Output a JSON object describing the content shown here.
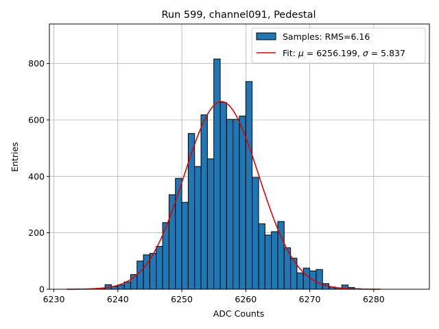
{
  "chart_data": {
    "type": "bar",
    "title": "Run 599, channel091, Pedestal",
    "xlabel": "ADC Counts",
    "ylabel": "Entries",
    "xlim": [
      6229.3,
      6288.7
    ],
    "ylim": [
      0,
      940
    ],
    "xticks": [
      6230,
      6240,
      6250,
      6260,
      6270,
      6280
    ],
    "yticks": [
      0,
      200,
      400,
      600,
      800
    ],
    "grid": true,
    "legend_position": "top-right",
    "histogram": {
      "name": "Samples: RMS=6.16",
      "bin_width": 1,
      "bin_left_edges": [
        6237,
        6238,
        6239,
        6240,
        6241,
        6242,
        6243,
        6244,
        6245,
        6246,
        6247,
        6248,
        6249,
        6250,
        6251,
        6252,
        6253,
        6254,
        6255,
        6256,
        6257,
        6258,
        6259,
        6260,
        6261,
        6262,
        6263,
        6264,
        6265,
        6266,
        6267,
        6268,
        6269,
        6270,
        6271,
        6272,
        6273,
        6274,
        6275,
        6276,
        6277
      ],
      "values": [
        3,
        16,
        10,
        15,
        26,
        52,
        100,
        122,
        127,
        152,
        236,
        335,
        393,
        308,
        552,
        435,
        618,
        462,
        816,
        662,
        602,
        602,
        614,
        736,
        396,
        232,
        192,
        204,
        240,
        147,
        110,
        58,
        75,
        65,
        70,
        20,
        8,
        5,
        15,
        6,
        2
      ],
      "fill_color": "#1f77b4",
      "edge_color": "#000000"
    },
    "fit": {
      "name": "Fit: μ = 6256.199, σ = 5.837",
      "label_prefix": "Fit: ",
      "mu_symbol": "μ",
      "mu_value": " = 6256.199, ",
      "sigma_symbol": "σ",
      "sigma_value": " = 5.837",
      "mu": 6256.199,
      "sigma": 5.837,
      "amplitude": 665,
      "x_range": [
        6232,
        6281
      ],
      "color": "#e00000"
    },
    "legend": {
      "hist_label": "Samples: RMS=6.16",
      "fit_label": "Fit: μ = 6256.199, σ = 5.837"
    }
  }
}
